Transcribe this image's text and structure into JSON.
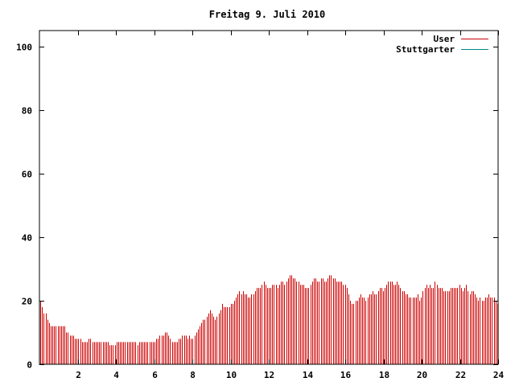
{
  "chart_data": {
    "type": "bar",
    "title": "Freitag 9. Juli 2010",
    "xlabel": "",
    "ylabel": "",
    "xlim": [
      0,
      24
    ],
    "ylim": [
      0,
      105
    ],
    "x_ticks": [
      "2",
      "4",
      "6",
      "8",
      "10",
      "12",
      "14",
      "16",
      "18",
      "20",
      "22",
      "24"
    ],
    "y_ticks": [
      "0",
      "20",
      "40",
      "60",
      "80",
      "100"
    ],
    "grid": false,
    "legend_position": "top-right",
    "series": [
      {
        "name": "User",
        "color": "#cc0000",
        "values": [
          20,
          18,
          16,
          16,
          14,
          13,
          12,
          12,
          12,
          12,
          12,
          12,
          12,
          12,
          12,
          10,
          10,
          9,
          9,
          9,
          8,
          8,
          8,
          8,
          7,
          7,
          7,
          7,
          8,
          8,
          7,
          7,
          7,
          7,
          7,
          7,
          7,
          7,
          7,
          7,
          6,
          6,
          6,
          6,
          7,
          7,
          7,
          7,
          7,
          7,
          7,
          7,
          7,
          7,
          7,
          7,
          6,
          7,
          7,
          7,
          7,
          7,
          7,
          7,
          7,
          7,
          7,
          8,
          8,
          9,
          9,
          9,
          10,
          10,
          9,
          8,
          7,
          7,
          7,
          7,
          8,
          8,
          9,
          9,
          9,
          8,
          9,
          8,
          8,
          9,
          10,
          11,
          12,
          13,
          14,
          14,
          15,
          16,
          17,
          16,
          15,
          14,
          15,
          16,
          17,
          19,
          18,
          18,
          18,
          18,
          19,
          19,
          20,
          21,
          22,
          23,
          22,
          23,
          22,
          22,
          21,
          21,
          22,
          22,
          23,
          24,
          24,
          24,
          25,
          26,
          25,
          24,
          24,
          24,
          25,
          25,
          25,
          24,
          25,
          26,
          26,
          25,
          26,
          27,
          28,
          28,
          27,
          27,
          26,
          26,
          25,
          25,
          25,
          24,
          24,
          24,
          25,
          26,
          27,
          27,
          26,
          26,
          27,
          27,
          26,
          26,
          27,
          28,
          28,
          27,
          27,
          26,
          26,
          26,
          26,
          25,
          25,
          24,
          22,
          20,
          19,
          19,
          20,
          20,
          21,
          22,
          21,
          21,
          20,
          21,
          22,
          22,
          23,
          22,
          22,
          23,
          24,
          24,
          23,
          24,
          25,
          26,
          26,
          26,
          25,
          25,
          26,
          25,
          24,
          23,
          23,
          22,
          22,
          21,
          21,
          21,
          21,
          21,
          22,
          20,
          21,
          23,
          24,
          25,
          24,
          25,
          24,
          24,
          26,
          25,
          24,
          24,
          24,
          23,
          23,
          23,
          23,
          24,
          24,
          24,
          24,
          24,
          25,
          24,
          23,
          24,
          25,
          23,
          22,
          23,
          23,
          22,
          21,
          20,
          21,
          20,
          20,
          21,
          21,
          22,
          21,
          21,
          21,
          20,
          19
        ]
      },
      {
        "name": "Stuttgarter",
        "color": "#008b8b",
        "values": []
      }
    ]
  }
}
